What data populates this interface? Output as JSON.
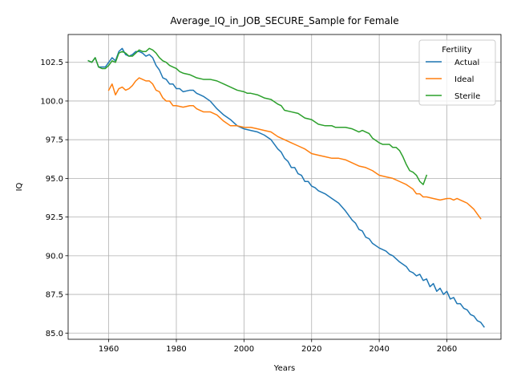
{
  "chart_data": {
    "type": "line",
    "title": "Average_IQ_in_JOB_SECURE_Sample for Female",
    "xlabel": "Years",
    "ylabel": "IQ",
    "xlim": [
      1948,
      2076
    ],
    "ylim": [
      84.6,
      104.3
    ],
    "xticks": [
      1960,
      1980,
      2000,
      2020,
      2040,
      2060
    ],
    "yticks": [
      85.0,
      87.5,
      90.0,
      92.5,
      95.0,
      97.5,
      100.0,
      102.5
    ],
    "xtick_labels": [
      "1960",
      "1980",
      "2000",
      "2020",
      "2040",
      "2060"
    ],
    "ytick_labels": [
      "85.0",
      "87.5",
      "90.0",
      "92.5",
      "95.0",
      "97.5",
      "100.0",
      "102.5"
    ],
    "grid": true,
    "legend": {
      "title": "Fertility",
      "placement": "top-right"
    },
    "series": [
      {
        "name": "Actual",
        "color": "#1f77b4",
        "points": [
          [
            1954,
            102.6
          ],
          [
            1955,
            102.5
          ],
          [
            1956,
            102.8
          ],
          [
            1957,
            102.2
          ],
          [
            1958,
            102.2
          ],
          [
            1959,
            102.2
          ],
          [
            1960,
            102.5
          ],
          [
            1961,
            102.8
          ],
          [
            1962,
            102.6
          ],
          [
            1963,
            103.2
          ],
          [
            1964,
            103.4
          ],
          [
            1965,
            103.0
          ],
          [
            1966,
            102.9
          ],
          [
            1967,
            103.0
          ],
          [
            1968,
            103.2
          ],
          [
            1969,
            103.2
          ],
          [
            1970,
            103.1
          ],
          [
            1971,
            102.9
          ],
          [
            1972,
            103.0
          ],
          [
            1973,
            102.8
          ],
          [
            1974,
            102.3
          ],
          [
            1975,
            102.0
          ],
          [
            1976,
            101.5
          ],
          [
            1977,
            101.4
          ],
          [
            1978,
            101.1
          ],
          [
            1979,
            101.1
          ],
          [
            1980,
            100.8
          ],
          [
            1981,
            100.8
          ],
          [
            1982,
            100.6
          ],
          [
            1984,
            100.7
          ],
          [
            1985,
            100.7
          ],
          [
            1986,
            100.5
          ],
          [
            1987,
            100.4
          ],
          [
            1988,
            100.3
          ],
          [
            1990,
            100.0
          ],
          [
            1992,
            99.5
          ],
          [
            1994,
            99.1
          ],
          [
            1996,
            98.8
          ],
          [
            1998,
            98.4
          ],
          [
            2000,
            98.2
          ],
          [
            2002,
            98.1
          ],
          [
            2004,
            98.0
          ],
          [
            2006,
            97.8
          ],
          [
            2008,
            97.5
          ],
          [
            2009,
            97.2
          ],
          [
            2010,
            96.9
          ],
          [
            2011,
            96.7
          ],
          [
            2012,
            96.3
          ],
          [
            2013,
            96.1
          ],
          [
            2014,
            95.7
          ],
          [
            2015,
            95.7
          ],
          [
            2016,
            95.3
          ],
          [
            2017,
            95.2
          ],
          [
            2018,
            94.8
          ],
          [
            2019,
            94.8
          ],
          [
            2020,
            94.5
          ],
          [
            2021,
            94.4
          ],
          [
            2022,
            94.2
          ],
          [
            2024,
            94.0
          ],
          [
            2026,
            93.7
          ],
          [
            2028,
            93.4
          ],
          [
            2030,
            92.9
          ],
          [
            2031,
            92.6
          ],
          [
            2032,
            92.3
          ],
          [
            2033,
            92.1
          ],
          [
            2034,
            91.7
          ],
          [
            2035,
            91.6
          ],
          [
            2036,
            91.2
          ],
          [
            2037,
            91.1
          ],
          [
            2038,
            90.8
          ],
          [
            2040,
            90.5
          ],
          [
            2042,
            90.3
          ],
          [
            2043,
            90.1
          ],
          [
            2044,
            90.0
          ],
          [
            2046,
            89.6
          ],
          [
            2048,
            89.3
          ],
          [
            2049,
            89.0
          ],
          [
            2050,
            88.9
          ],
          [
            2051,
            88.7
          ],
          [
            2052,
            88.8
          ],
          [
            2053,
            88.4
          ],
          [
            2054,
            88.5
          ],
          [
            2055,
            88.0
          ],
          [
            2056,
            88.2
          ],
          [
            2057,
            87.7
          ],
          [
            2058,
            87.9
          ],
          [
            2059,
            87.5
          ],
          [
            2060,
            87.7
          ],
          [
            2061,
            87.2
          ],
          [
            2062,
            87.3
          ],
          [
            2063,
            86.9
          ],
          [
            2064,
            86.9
          ],
          [
            2065,
            86.6
          ],
          [
            2066,
            86.5
          ],
          [
            2067,
            86.2
          ],
          [
            2068,
            86.1
          ],
          [
            2069,
            85.8
          ],
          [
            2070,
            85.7
          ],
          [
            2071,
            85.4
          ]
        ]
      },
      {
        "name": "Ideal",
        "color": "#ff7f0e",
        "points": [
          [
            1960,
            100.7
          ],
          [
            1961,
            101.1
          ],
          [
            1962,
            100.4
          ],
          [
            1963,
            100.8
          ],
          [
            1964,
            100.9
          ],
          [
            1965,
            100.7
          ],
          [
            1966,
            100.8
          ],
          [
            1967,
            101.0
          ],
          [
            1968,
            101.3
          ],
          [
            1969,
            101.5
          ],
          [
            1970,
            101.4
          ],
          [
            1971,
            101.3
          ],
          [
            1972,
            101.3
          ],
          [
            1973,
            101.1
          ],
          [
            1974,
            100.7
          ],
          [
            1975,
            100.6
          ],
          [
            1976,
            100.2
          ],
          [
            1977,
            100.0
          ],
          [
            1978,
            100.0
          ],
          [
            1979,
            99.7
          ],
          [
            1980,
            99.7
          ],
          [
            1982,
            99.6
          ],
          [
            1984,
            99.7
          ],
          [
            1985,
            99.7
          ],
          [
            1986,
            99.5
          ],
          [
            1987,
            99.4
          ],
          [
            1988,
            99.3
          ],
          [
            1990,
            99.3
          ],
          [
            1992,
            99.1
          ],
          [
            1994,
            98.7
          ],
          [
            1996,
            98.4
          ],
          [
            1998,
            98.4
          ],
          [
            2000,
            98.3
          ],
          [
            2002,
            98.3
          ],
          [
            2004,
            98.2
          ],
          [
            2006,
            98.1
          ],
          [
            2008,
            98.0
          ],
          [
            2010,
            97.7
          ],
          [
            2012,
            97.5
          ],
          [
            2014,
            97.3
          ],
          [
            2016,
            97.1
          ],
          [
            2018,
            96.9
          ],
          [
            2020,
            96.6
          ],
          [
            2022,
            96.5
          ],
          [
            2024,
            96.4
          ],
          [
            2026,
            96.3
          ],
          [
            2028,
            96.3
          ],
          [
            2030,
            96.2
          ],
          [
            2032,
            96.0
          ],
          [
            2034,
            95.8
          ],
          [
            2036,
            95.7
          ],
          [
            2038,
            95.5
          ],
          [
            2040,
            95.2
          ],
          [
            2042,
            95.1
          ],
          [
            2044,
            95.0
          ],
          [
            2046,
            94.8
          ],
          [
            2048,
            94.6
          ],
          [
            2050,
            94.3
          ],
          [
            2051,
            94.0
          ],
          [
            2052,
            94.0
          ],
          [
            2053,
            93.8
          ],
          [
            2054,
            93.8
          ],
          [
            2056,
            93.7
          ],
          [
            2058,
            93.6
          ],
          [
            2060,
            93.7
          ],
          [
            2061,
            93.7
          ],
          [
            2062,
            93.6
          ],
          [
            2063,
            93.7
          ],
          [
            2064,
            93.6
          ],
          [
            2065,
            93.5
          ],
          [
            2066,
            93.4
          ],
          [
            2067,
            93.2
          ],
          [
            2068,
            93.0
          ],
          [
            2069,
            92.7
          ],
          [
            2070,
            92.4
          ]
        ]
      },
      {
        "name": "Sterile",
        "color": "#2ca02c",
        "points": [
          [
            1954,
            102.6
          ],
          [
            1955,
            102.5
          ],
          [
            1956,
            102.8
          ],
          [
            1957,
            102.2
          ],
          [
            1958,
            102.1
          ],
          [
            1959,
            102.1
          ],
          [
            1960,
            102.3
          ],
          [
            1961,
            102.6
          ],
          [
            1962,
            102.5
          ],
          [
            1963,
            103.1
          ],
          [
            1964,
            103.2
          ],
          [
            1965,
            103.1
          ],
          [
            1966,
            102.9
          ],
          [
            1967,
            102.9
          ],
          [
            1968,
            103.1
          ],
          [
            1969,
            103.3
          ],
          [
            1970,
            103.2
          ],
          [
            1971,
            103.2
          ],
          [
            1972,
            103.4
          ],
          [
            1973,
            103.3
          ],
          [
            1974,
            103.1
          ],
          [
            1975,
            102.8
          ],
          [
            1976,
            102.6
          ],
          [
            1977,
            102.5
          ],
          [
            1978,
            102.3
          ],
          [
            1979,
            102.2
          ],
          [
            1980,
            102.1
          ],
          [
            1981,
            101.9
          ],
          [
            1982,
            101.8
          ],
          [
            1984,
            101.7
          ],
          [
            1985,
            101.6
          ],
          [
            1986,
            101.5
          ],
          [
            1988,
            101.4
          ],
          [
            1990,
            101.4
          ],
          [
            1992,
            101.3
          ],
          [
            1994,
            101.1
          ],
          [
            1996,
            100.9
          ],
          [
            1998,
            100.7
          ],
          [
            2000,
            100.6
          ],
          [
            2001,
            100.5
          ],
          [
            2002,
            100.5
          ],
          [
            2004,
            100.4
          ],
          [
            2006,
            100.2
          ],
          [
            2008,
            100.1
          ],
          [
            2010,
            99.8
          ],
          [
            2011,
            99.7
          ],
          [
            2012,
            99.4
          ],
          [
            2014,
            99.3
          ],
          [
            2016,
            99.2
          ],
          [
            2018,
            98.9
          ],
          [
            2020,
            98.8
          ],
          [
            2022,
            98.5
          ],
          [
            2024,
            98.4
          ],
          [
            2026,
            98.4
          ],
          [
            2027,
            98.3
          ],
          [
            2028,
            98.3
          ],
          [
            2030,
            98.3
          ],
          [
            2032,
            98.2
          ],
          [
            2033,
            98.1
          ],
          [
            2034,
            98.0
          ],
          [
            2035,
            98.1
          ],
          [
            2036,
            98.0
          ],
          [
            2037,
            97.9
          ],
          [
            2038,
            97.6
          ],
          [
            2040,
            97.3
          ],
          [
            2041,
            97.2
          ],
          [
            2042,
            97.2
          ],
          [
            2043,
            97.2
          ],
          [
            2044,
            97.0
          ],
          [
            2045,
            97.0
          ],
          [
            2046,
            96.8
          ],
          [
            2047,
            96.4
          ],
          [
            2048,
            95.9
          ],
          [
            2049,
            95.5
          ],
          [
            2050,
            95.4
          ],
          [
            2051,
            95.2
          ],
          [
            2052,
            94.8
          ],
          [
            2053,
            94.6
          ],
          [
            2054,
            95.2
          ]
        ]
      }
    ]
  }
}
